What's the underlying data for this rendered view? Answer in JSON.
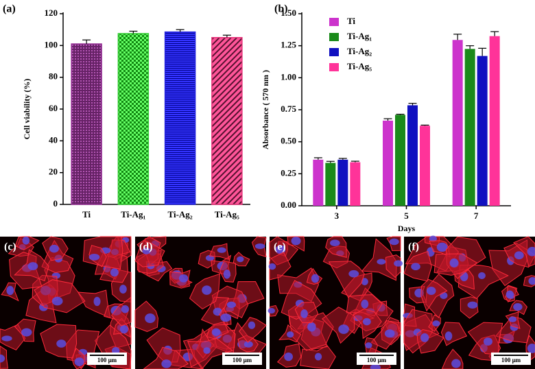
{
  "chart_data": [
    {
      "type": "bar",
      "panel": "(a)",
      "ylabel": "Cell viability (%)",
      "categories": [
        "Ti",
        "Ti-Ag₁",
        "Ti-Ag₂",
        "Ti-Ag₅"
      ],
      "values": [
        101,
        107.5,
        108.5,
        105
      ],
      "errors": [
        2.5,
        1.5,
        1.5,
        1.5
      ],
      "colors": [
        "#993399",
        "#33cc33",
        "#2222dd",
        "#e8337a"
      ],
      "patterns": [
        "dots",
        "checker",
        "hlines",
        "diagonal"
      ],
      "ylim": [
        0,
        120
      ],
      "yticks": [
        0,
        20,
        40,
        60,
        80,
        100,
        120
      ]
    },
    {
      "type": "grouped_bar",
      "panel": "(b)",
      "ylabel": "Absorbance ( 570 nm )",
      "xlabel": "Days",
      "categories": [
        "3",
        "5",
        "7"
      ],
      "series": [
        {
          "name": "Ti",
          "color": "#cc33cc",
          "values": [
            0.36,
            0.665,
            1.295
          ],
          "errors": [
            0.015,
            0.015,
            0.045
          ]
        },
        {
          "name": "Ti-Ag₁",
          "color": "#1a8a1a",
          "values": [
            0.335,
            0.71,
            1.225
          ],
          "errors": [
            0.012,
            0.005,
            0.025
          ]
        },
        {
          "name": "Ti-Ag₂",
          "color": "#1010c0",
          "values": [
            0.36,
            0.785,
            1.17
          ],
          "errors": [
            0.01,
            0.015,
            0.06
          ]
        },
        {
          "name": "Ti-Ag₅",
          "color": "#ff3399",
          "values": [
            0.34,
            0.625,
            1.325
          ],
          "errors": [
            0.008,
            0.005,
            0.035
          ]
        }
      ],
      "ylim": [
        0,
        1.5
      ],
      "yticks": [
        {
          "value": 0,
          "label": "0.00"
        },
        {
          "value": 0.25,
          "label": "0.25"
        },
        {
          "value": 0.5,
          "label": "0.50"
        },
        {
          "value": 0.75,
          "label": "0.75"
        },
        {
          "value": 1,
          "label": "1.00"
        },
        {
          "value": 1.25,
          "label": "1.25"
        },
        {
          "value": 1.5,
          "label": "1.50"
        }
      ],
      "legend": "upper left"
    }
  ],
  "panels": [
    {
      "label": "(c)",
      "scale": "100 μm"
    },
    {
      "label": "(d)",
      "scale": "100 μm"
    },
    {
      "label": "(e)",
      "scale": "100 μm"
    },
    {
      "label": "(f)",
      "scale": "100 μm"
    }
  ]
}
